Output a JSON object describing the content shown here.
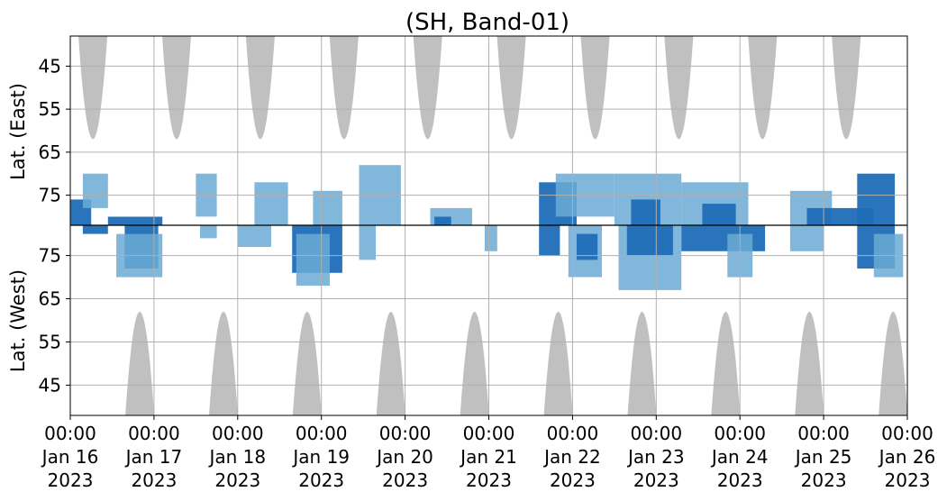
{
  "chart_data": {
    "type": "heatmap",
    "title": "(SH, Band-01)",
    "ylabel_top": "Lat. (East)",
    "ylabel_bottom": "Lat. (West)",
    "xlabel": "",
    "x_range": [
      "2023-01-16T00:00",
      "2023-01-26T00:00"
    ],
    "x_ticks": [
      {
        "time": "00:00",
        "date": "Jan 16",
        "year": "2023"
      },
      {
        "time": "00:00",
        "date": "Jan 17",
        "year": "2023"
      },
      {
        "time": "00:00",
        "date": "Jan 18",
        "year": "2023"
      },
      {
        "time": "00:00",
        "date": "Jan 19",
        "year": "2023"
      },
      {
        "time": "00:00",
        "date": "Jan 20",
        "year": "2023"
      },
      {
        "time": "00:00",
        "date": "Jan 21",
        "year": "2023"
      },
      {
        "time": "00:00",
        "date": "Jan 22",
        "year": "2023"
      },
      {
        "time": "00:00",
        "date": "Jan 23",
        "year": "2023"
      },
      {
        "time": "00:00",
        "date": "Jan 24",
        "year": "2023"
      },
      {
        "time": "00:00",
        "date": "Jan 25",
        "year": "2023"
      },
      {
        "time": "00:00",
        "date": "Jan 26",
        "year": "2023"
      }
    ],
    "y_ticks_east": [
      45,
      55,
      65,
      75
    ],
    "y_ticks_west": [
      75,
      65,
      55,
      45
    ],
    "y_range_east": [
      38,
      82
    ],
    "y_range_west": [
      82,
      38
    ],
    "grid": true,
    "colors": {
      "daylight": "#c0c0c0",
      "light": "#6aaad4",
      "dark": "#1f6db8",
      "divider": "#000000",
      "grid": "#b0b0b0"
    },
    "daylight_lobes_east": [
      {
        "center_day": 0.27,
        "half_width_days": 0.18,
        "min_lat": 62
      },
      {
        "center_day": 1.27,
        "half_width_days": 0.18,
        "min_lat": 62
      },
      {
        "center_day": 2.27,
        "half_width_days": 0.18,
        "min_lat": 62
      },
      {
        "center_day": 3.27,
        "half_width_days": 0.18,
        "min_lat": 62
      },
      {
        "center_day": 4.27,
        "half_width_days": 0.18,
        "min_lat": 62
      },
      {
        "center_day": 5.27,
        "half_width_days": 0.18,
        "min_lat": 62
      },
      {
        "center_day": 6.27,
        "half_width_days": 0.18,
        "min_lat": 62
      },
      {
        "center_day": 7.27,
        "half_width_days": 0.18,
        "min_lat": 62
      },
      {
        "center_day": 8.27,
        "half_width_days": 0.18,
        "min_lat": 62
      },
      {
        "center_day": 9.27,
        "half_width_days": 0.18,
        "min_lat": 62
      }
    ],
    "daylight_lobes_west": [
      {
        "center_day": 0.83,
        "half_width_days": 0.18,
        "min_lat": 62
      },
      {
        "center_day": 1.83,
        "half_width_days": 0.18,
        "min_lat": 62
      },
      {
        "center_day": 2.83,
        "half_width_days": 0.18,
        "min_lat": 62
      },
      {
        "center_day": 3.83,
        "half_width_days": 0.18,
        "min_lat": 62
      },
      {
        "center_day": 4.83,
        "half_width_days": 0.18,
        "min_lat": 62
      },
      {
        "center_day": 5.83,
        "half_width_days": 0.18,
        "min_lat": 62
      },
      {
        "center_day": 6.83,
        "half_width_days": 0.18,
        "min_lat": 62
      },
      {
        "center_day": 7.83,
        "half_width_days": 0.18,
        "min_lat": 62
      },
      {
        "center_day": 8.83,
        "half_width_days": 0.18,
        "min_lat": 62
      },
      {
        "center_day": 9.83,
        "half_width_days": 0.18,
        "min_lat": 62
      }
    ],
    "activity": [
      {
        "side": "east",
        "day_start": 0.0,
        "day_end": 0.25,
        "lat_lo": 76,
        "lat_hi": 82,
        "intensity": "dark"
      },
      {
        "side": "east",
        "day_start": 0.15,
        "day_end": 0.45,
        "lat_lo": 70,
        "lat_hi": 78,
        "intensity": "light"
      },
      {
        "side": "west",
        "day_start": 0.15,
        "day_end": 0.45,
        "lat_lo": 80,
        "lat_hi": 82,
        "intensity": "dark"
      },
      {
        "side": "east",
        "day_start": 0.45,
        "day_end": 1.1,
        "lat_lo": 80,
        "lat_hi": 82,
        "intensity": "dark"
      },
      {
        "side": "west",
        "day_start": 0.65,
        "day_end": 1.05,
        "lat_lo": 72,
        "lat_hi": 82,
        "intensity": "dark"
      },
      {
        "side": "west",
        "day_start": 0.55,
        "day_end": 1.1,
        "lat_lo": 70,
        "lat_hi": 80,
        "intensity": "light"
      },
      {
        "side": "east",
        "day_start": 1.5,
        "day_end": 1.75,
        "lat_lo": 70,
        "lat_hi": 80,
        "intensity": "light"
      },
      {
        "side": "west",
        "day_start": 1.55,
        "day_end": 1.75,
        "lat_lo": 79,
        "lat_hi": 82,
        "intensity": "light"
      },
      {
        "side": "east",
        "day_start": 2.2,
        "day_end": 2.6,
        "lat_lo": 72,
        "lat_hi": 82,
        "intensity": "light"
      },
      {
        "side": "west",
        "day_start": 2.0,
        "day_end": 2.4,
        "lat_lo": 77,
        "lat_hi": 82,
        "intensity": "light"
      },
      {
        "side": "east",
        "day_start": 2.9,
        "day_end": 3.25,
        "lat_lo": 74,
        "lat_hi": 82,
        "intensity": "light"
      },
      {
        "side": "west",
        "day_start": 2.65,
        "day_end": 3.25,
        "lat_lo": 71,
        "lat_hi": 82,
        "intensity": "dark"
      },
      {
        "side": "west",
        "day_start": 2.7,
        "day_end": 3.1,
        "lat_lo": 68,
        "lat_hi": 80,
        "intensity": "light"
      },
      {
        "side": "east",
        "day_start": 3.45,
        "day_end": 3.95,
        "lat_lo": 68,
        "lat_hi": 82,
        "intensity": "light"
      },
      {
        "side": "west",
        "day_start": 3.45,
        "day_end": 3.65,
        "lat_lo": 74,
        "lat_hi": 82,
        "intensity": "light"
      },
      {
        "side": "east",
        "day_start": 4.3,
        "day_end": 4.8,
        "lat_lo": 78,
        "lat_hi": 82,
        "intensity": "light"
      },
      {
        "side": "east",
        "day_start": 4.35,
        "day_end": 4.55,
        "lat_lo": 80,
        "lat_hi": 82,
        "intensity": "dark"
      },
      {
        "side": "west",
        "day_start": 4.95,
        "day_end": 5.1,
        "lat_lo": 76,
        "lat_hi": 82,
        "intensity": "light"
      },
      {
        "side": "east",
        "day_start": 5.6,
        "day_end": 6.05,
        "lat_lo": 72,
        "lat_hi": 82,
        "intensity": "dark"
      },
      {
        "side": "west",
        "day_start": 5.6,
        "day_end": 5.85,
        "lat_lo": 75,
        "lat_hi": 82,
        "intensity": "dark"
      },
      {
        "side": "east",
        "day_start": 5.8,
        "day_end": 6.5,
        "lat_lo": 70,
        "lat_hi": 80,
        "intensity": "light"
      },
      {
        "side": "west",
        "day_start": 5.95,
        "day_end": 6.35,
        "lat_lo": 70,
        "lat_hi": 82,
        "intensity": "light"
      },
      {
        "side": "west",
        "day_start": 6.05,
        "day_end": 6.3,
        "lat_lo": 74,
        "lat_hi": 80,
        "intensity": "dark"
      },
      {
        "side": "east",
        "day_start": 6.5,
        "day_end": 7.3,
        "lat_lo": 70,
        "lat_hi": 82,
        "intensity": "light"
      },
      {
        "side": "east",
        "day_start": 6.7,
        "day_end": 7.05,
        "lat_lo": 76,
        "lat_hi": 82,
        "intensity": "dark"
      },
      {
        "side": "west",
        "day_start": 6.55,
        "day_end": 7.3,
        "lat_lo": 67,
        "lat_hi": 82,
        "intensity": "light"
      },
      {
        "side": "west",
        "day_start": 6.65,
        "day_end": 7.2,
        "lat_lo": 75,
        "lat_hi": 82,
        "intensity": "dark"
      },
      {
        "side": "east",
        "day_start": 7.3,
        "day_end": 8.1,
        "lat_lo": 72,
        "lat_hi": 82,
        "intensity": "light"
      },
      {
        "side": "east",
        "day_start": 7.55,
        "day_end": 7.95,
        "lat_lo": 77,
        "lat_hi": 82,
        "intensity": "dark"
      },
      {
        "side": "west",
        "day_start": 7.3,
        "day_end": 8.3,
        "lat_lo": 76,
        "lat_hi": 82,
        "intensity": "dark"
      },
      {
        "side": "west",
        "day_start": 7.85,
        "day_end": 8.15,
        "lat_lo": 70,
        "lat_hi": 80,
        "intensity": "light"
      },
      {
        "side": "east",
        "day_start": 8.6,
        "day_end": 9.1,
        "lat_lo": 74,
        "lat_hi": 82,
        "intensity": "light"
      },
      {
        "side": "east",
        "day_start": 8.8,
        "day_end": 9.6,
        "lat_lo": 78,
        "lat_hi": 82,
        "intensity": "dark"
      },
      {
        "side": "west",
        "day_start": 8.6,
        "day_end": 9.0,
        "lat_lo": 76,
        "lat_hi": 82,
        "intensity": "light"
      },
      {
        "side": "east",
        "day_start": 9.4,
        "day_end": 9.85,
        "lat_lo": 70,
        "lat_hi": 82,
        "intensity": "dark"
      },
      {
        "side": "west",
        "day_start": 9.4,
        "day_end": 9.85,
        "lat_lo": 72,
        "lat_hi": 82,
        "intensity": "dark"
      },
      {
        "side": "west",
        "day_start": 9.6,
        "day_end": 9.95,
        "lat_lo": 70,
        "lat_hi": 80,
        "intensity": "light"
      }
    ]
  }
}
